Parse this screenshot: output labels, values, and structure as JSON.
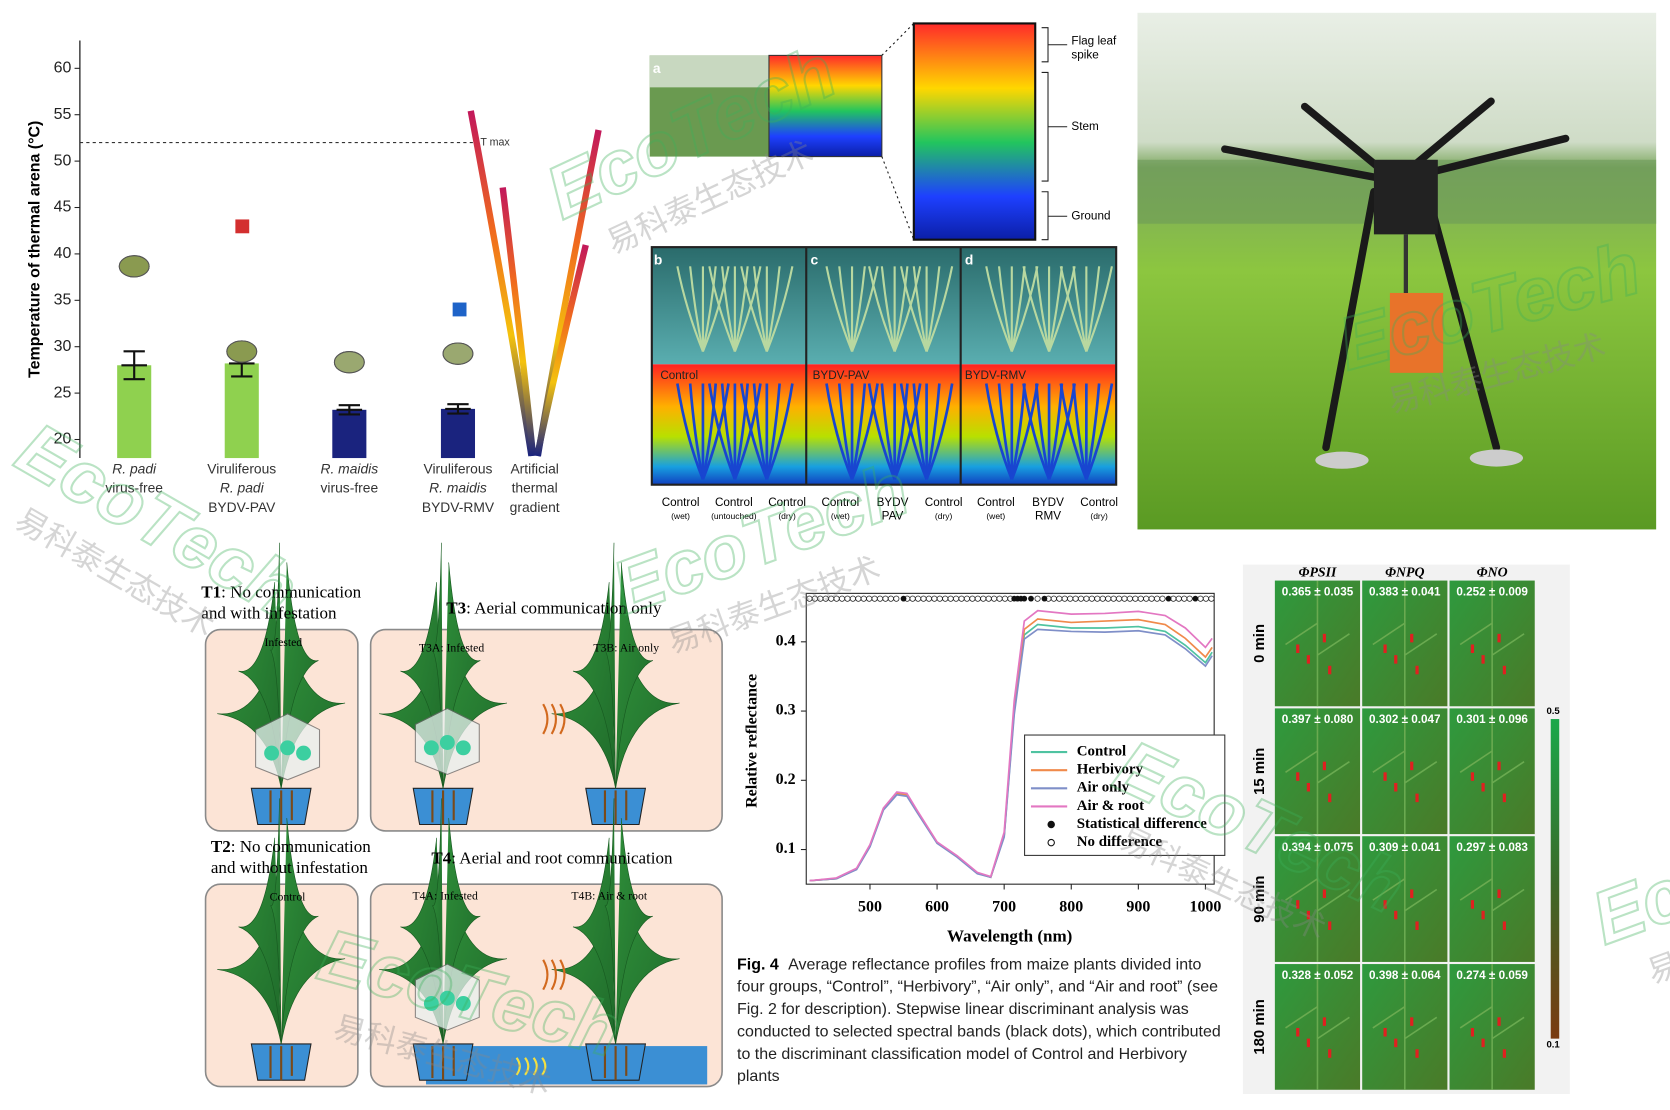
{
  "watermark": {
    "latin": "EcoTech",
    "chinese": "易科泰生态技术"
  },
  "thermal_chart": {
    "type": "bar",
    "y_label": "Temperature of thermal arena (°C)",
    "categories": [
      [
        "R. padi",
        "virus-free"
      ],
      [
        "Viruliferous",
        "R. padi",
        "BYDV-PAV"
      ],
      [
        "R. maidis",
        "virus-free"
      ],
      [
        "Viruliferous",
        "R. maidis",
        "BYDV-RMV"
      ],
      [
        "Artificial",
        "thermal",
        "gradient"
      ]
    ],
    "values": [
      28,
      28.2,
      23.2,
      23.3,
      null
    ],
    "errors": [
      1.5,
      1.4,
      0.5,
      0.5,
      null
    ],
    "colors": [
      "#8fd14f",
      "#8fd14f",
      "#1a237e",
      "#1a237e"
    ],
    "ylim": [
      18,
      63
    ],
    "yticks": [
      20,
      25,
      30,
      35,
      40,
      45,
      50,
      55,
      60
    ],
    "threshold": {
      "value": 52,
      "label": "T max"
    }
  },
  "thermal_images": {
    "panels": [
      "a",
      "b",
      "c",
      "d"
    ],
    "zoom_labels": [
      [
        "Flag leaf",
        "spike"
      ],
      [
        "Stem"
      ],
      [
        "Ground"
      ]
    ],
    "image_labels": [
      "Control",
      "BYDV-PAV",
      "BYDV-RMV"
    ],
    "x_labels": [
      [
        "Control",
        "(wet)"
      ],
      [
        "Control",
        "(untouched)"
      ],
      [
        "Control",
        "(dry)"
      ],
      [
        "Control",
        "(wet)"
      ],
      [
        "BYDV",
        "PAV"
      ],
      [
        "Control",
        "(dry)"
      ],
      [
        "Control",
        "(wet)"
      ],
      [
        "BYDV",
        "RMV"
      ],
      [
        "Control",
        "(dry)"
      ]
    ]
  },
  "communication_diagram": {
    "treatments": [
      {
        "code": "T1",
        "text": ": No communication",
        "text2": "and with infestation",
        "boxes": [
          "Infested"
        ]
      },
      {
        "code": "T3",
        "text": ": Aerial communication only",
        "boxes": [
          "T3A: Infested",
          "T3B: Air only"
        ]
      },
      {
        "code": "T2",
        "text": ": No communication",
        "text2": "and without infestation",
        "boxes": [
          "Control"
        ]
      },
      {
        "code": "T4",
        "text": ": Aerial and root communication",
        "boxes": [
          "T4A: Infested",
          "T4B: Air & root"
        ]
      }
    ]
  },
  "reflectance_chart": {
    "type": "line",
    "y_label": "Relative reflectance",
    "x_label": "Wavelength (nm)",
    "x": [
      410,
      450,
      480,
      500,
      520,
      540,
      555,
      570,
      600,
      630,
      660,
      680,
      700,
      715,
      730,
      750,
      800,
      850,
      900,
      940,
      970,
      1000,
      1010
    ],
    "series": [
      {
        "name": "Control",
        "color": "#4fc3a1",
        "values": [
          0.055,
          0.058,
          0.072,
          0.105,
          0.158,
          0.18,
          0.178,
          0.155,
          0.11,
          0.09,
          0.066,
          0.06,
          0.12,
          0.3,
          0.41,
          0.425,
          0.42,
          0.42,
          0.422,
          0.415,
          0.395,
          0.37,
          0.385
        ]
      },
      {
        "name": "Herbivory",
        "color": "#f08a4b",
        "values": [
          0.055,
          0.058,
          0.072,
          0.106,
          0.159,
          0.181,
          0.179,
          0.156,
          0.11,
          0.09,
          0.066,
          0.06,
          0.12,
          0.305,
          0.418,
          0.433,
          0.428,
          0.43,
          0.432,
          0.425,
          0.405,
          0.378,
          0.392
        ]
      },
      {
        "name": "Air only",
        "color": "#7f8fc8",
        "values": [
          0.055,
          0.058,
          0.071,
          0.104,
          0.157,
          0.179,
          0.177,
          0.154,
          0.109,
          0.089,
          0.065,
          0.06,
          0.118,
          0.295,
          0.404,
          0.418,
          0.415,
          0.414,
          0.416,
          0.41,
          0.39,
          0.365,
          0.38
        ]
      },
      {
        "name": "Air & root",
        "color": "#e377c2",
        "values": [
          0.055,
          0.059,
          0.073,
          0.107,
          0.16,
          0.183,
          0.181,
          0.157,
          0.111,
          0.091,
          0.067,
          0.061,
          0.125,
          0.315,
          0.43,
          0.445,
          0.44,
          0.441,
          0.444,
          0.438,
          0.42,
          0.392,
          0.405
        ]
      }
    ],
    "legend_markers": [
      "Statistical difference",
      "No difference"
    ],
    "significant_bands": [
      550,
      715,
      720,
      725,
      730,
      740,
      760,
      945,
      985
    ],
    "xlim": [
      405,
      1013
    ],
    "ylim": [
      0.05,
      0.47
    ],
    "xticks": [
      500,
      600,
      700,
      800,
      900,
      1000
    ],
    "yticks": [
      0.1,
      0.2,
      0.3,
      0.4
    ],
    "caption": {
      "label": "Fig. 4",
      "lines": [
        "Average reflectance profiles from maize plants divided into",
        "four groups, “Control”, “Herbivory”, “Air only”, and “Air and root” (see",
        "Fig. 2 for description). Stepwise linear discriminant analysis was",
        "conducted to selected spectral bands (black dots), which contributed",
        "to the discriminant classification model of Control and Herbivory",
        "plants"
      ]
    }
  },
  "fluorescence_grid": {
    "columns": [
      "ΦPSII",
      "ΦNPQ",
      "ΦNO"
    ],
    "rows": [
      "0 min",
      "15 min",
      "90 min",
      "180 min"
    ],
    "cells": [
      [
        "0.365 ± 0.035",
        "0.383 ± 0.041",
        "0.252 ± 0.009"
      ],
      [
        "0.397 ± 0.080",
        "0.302 ± 0.047",
        "0.301 ± 0.096"
      ],
      [
        "0.394 ± 0.075",
        "0.309 ± 0.041",
        "0.297 ± 0.083"
      ],
      [
        "0.328 ± 0.052",
        "0.398 ± 0.064",
        "0.274 ± 0.059"
      ]
    ],
    "colorbar": {
      "max": 0.5,
      "min": 0.1
    }
  }
}
